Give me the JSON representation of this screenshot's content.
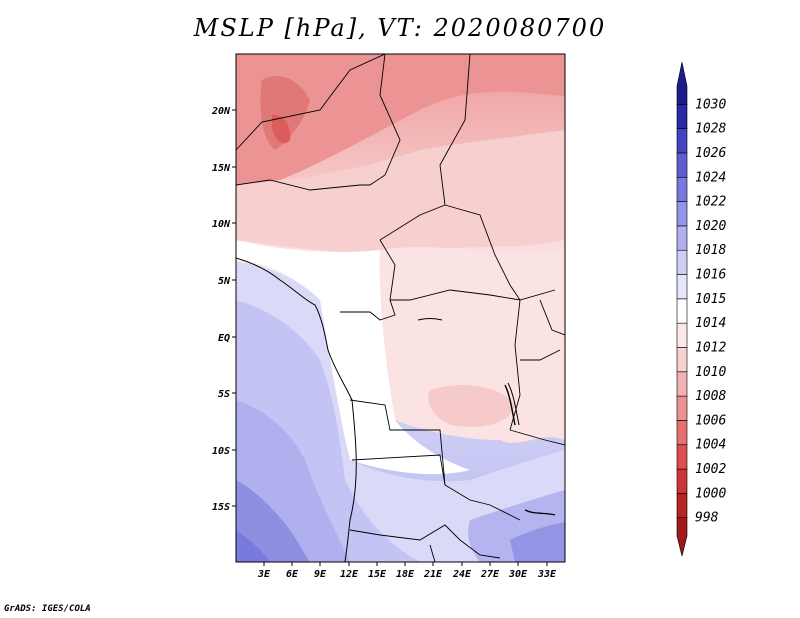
{
  "title": "MSLP [hPa], VT: 2020080700",
  "credit": "GrADS: IGES/COLA",
  "lat_labels": [
    "20N",
    "15N",
    "10N",
    "5N",
    "EQ",
    "5S",
    "10S",
    "15S"
  ],
  "lon_labels": [
    "3E",
    "6E",
    "9E",
    "12E",
    "15E",
    "18E",
    "21E",
    "24E",
    "27E",
    "30E",
    "33E"
  ],
  "colorbar": {
    "levels": [
      "998",
      "1000",
      "1002",
      "1004",
      "1006",
      "1008",
      "1010",
      "1012",
      "1014",
      "1015",
      "1016",
      "1018",
      "1020",
      "1022",
      "1024",
      "1026",
      "1028",
      "1030"
    ],
    "colors": [
      "#a01818",
      "#b82424",
      "#cc3535",
      "#dc4d4d",
      "#e47070",
      "#ec9292",
      "#f2b2b2",
      "#f8d2d2",
      "#fce8e8",
      "#ffffff",
      "#e6e6fa",
      "#cdcdf7",
      "#b0b0f0",
      "#9595e8",
      "#7878de",
      "#5e5ed0",
      "#4444c0",
      "#2a2aa8",
      "#1c1c8c"
    ]
  }
}
